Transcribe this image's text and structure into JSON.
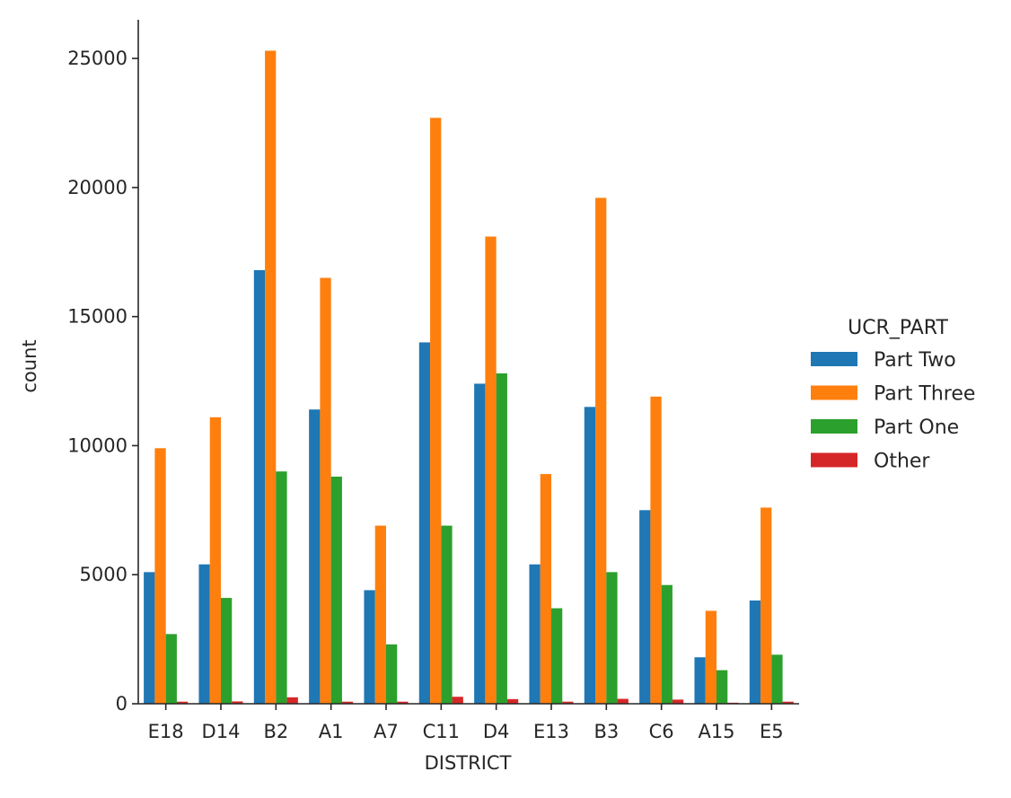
{
  "chart_data": {
    "type": "bar",
    "title": "",
    "xlabel": "DISTRICT",
    "ylabel": "count",
    "ylim": [
      0,
      26500
    ],
    "yticks": [
      0,
      5000,
      10000,
      15000,
      20000,
      25000
    ],
    "ytick_labels": [
      "0",
      "5000",
      "10000",
      "15000",
      "20000",
      "25000"
    ],
    "grid": false,
    "categories": [
      "E18",
      "D14",
      "B2",
      "A1",
      "A7",
      "C11",
      "D4",
      "E13",
      "B3",
      "C6",
      "A15",
      "E5"
    ],
    "legend": {
      "title": "UCR_PART",
      "placement": "right"
    },
    "series": [
      {
        "name": "Part Two",
        "color": "#1f77b4",
        "values": [
          5100,
          5400,
          16800,
          11400,
          4400,
          14000,
          12400,
          5400,
          11500,
          7500,
          1800,
          4000
        ]
      },
      {
        "name": "Part Three",
        "color": "#ff7f0e",
        "values": [
          9900,
          11100,
          25300,
          16500,
          6900,
          22700,
          18100,
          8900,
          19600,
          11900,
          3600,
          7600
        ]
      },
      {
        "name": "Part One",
        "color": "#2ca02c",
        "values": [
          2700,
          4100,
          9000,
          8800,
          2300,
          6900,
          12800,
          3700,
          5100,
          4600,
          1300,
          1900
        ]
      },
      {
        "name": "Other",
        "color": "#d62728",
        "values": [
          80,
          90,
          250,
          80,
          80,
          270,
          180,
          80,
          190,
          160,
          40,
          80
        ]
      }
    ]
  }
}
